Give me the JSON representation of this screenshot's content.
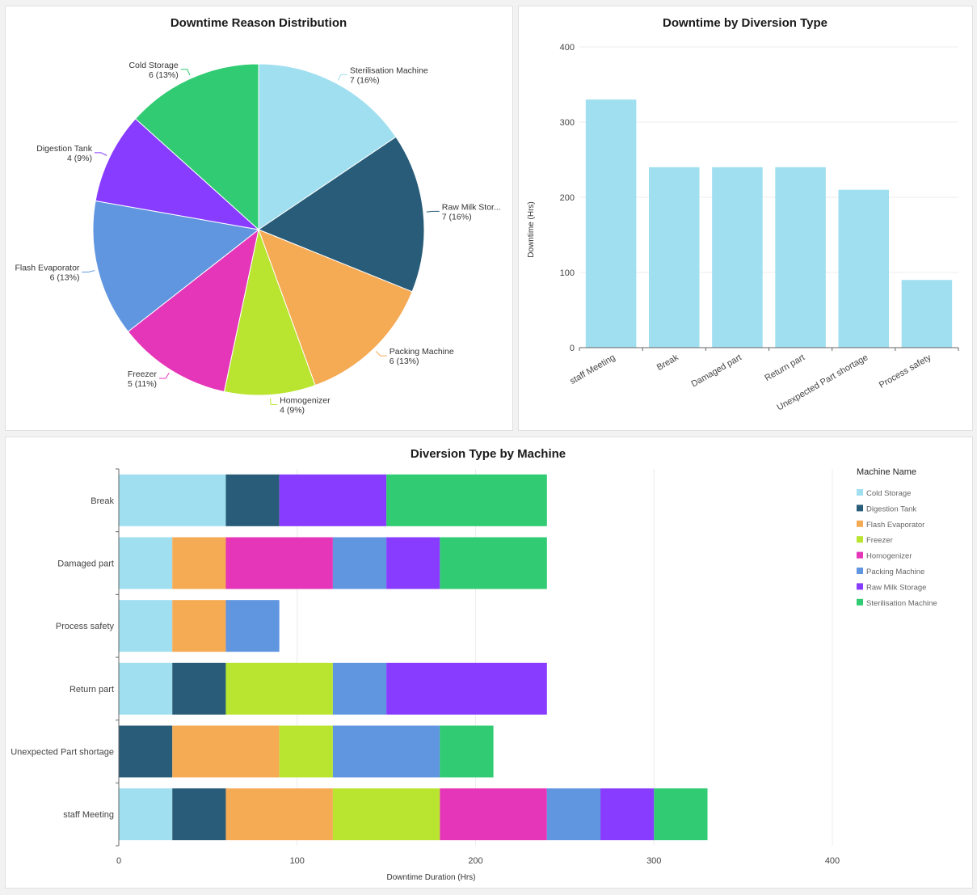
{
  "colors": {
    "Cold Storage": "#a0dff0",
    "Digestion Tank": "#285c78",
    "Flash Evaporator": "#f5aa54",
    "Freezer": "#b9e530",
    "Homogenizer": "#e535b8",
    "Packing Machine": "#6096e0",
    "Raw Milk Storage": "#873cff",
    "Sterilisation Machine": "#30cb72"
  },
  "chart_data": [
    {
      "type": "pie",
      "title": "Downtime Reason Distribution",
      "slices": [
        {
          "label": "Sterilisation Machine",
          "display": "Sterilisation Machine",
          "value": 7,
          "pct": "7 (16%)",
          "color": "#a0dff0"
        },
        {
          "label": "Raw Milk Storage",
          "display": "Raw Milk Stor...",
          "value": 7,
          "pct": "7 (16%)",
          "color": "#285c78"
        },
        {
          "label": "Packing Machine",
          "display": "Packing Machine",
          "value": 6,
          "pct": "6 (13%)",
          "color": "#f5aa54"
        },
        {
          "label": "Homogenizer",
          "display": "Homogenizer",
          "value": 4,
          "pct": "4 (9%)",
          "color": "#b9e530"
        },
        {
          "label": "Freezer",
          "display": "Freezer",
          "value": 5,
          "pct": "5 (11%)",
          "color": "#e535b8"
        },
        {
          "label": "Flash Evaporator",
          "display": "Flash Evaporator",
          "value": 6,
          "pct": "6 (13%)",
          "color": "#6096e0"
        },
        {
          "label": "Digestion Tank",
          "display": "Digestion Tank",
          "value": 4,
          "pct": "4 (9%)",
          "color": "#873cff"
        },
        {
          "label": "Cold Storage",
          "display": "Cold Storage",
          "value": 6,
          "pct": "6 (13%)",
          "color": "#30cb72"
        }
      ]
    },
    {
      "type": "bar",
      "title": "Downtime by Diversion Type",
      "categories": [
        "staff Meeting",
        "Break",
        "Damaged part",
        "Return part",
        "Unexpected Part shortage",
        "Process safety"
      ],
      "values": [
        330,
        240,
        240,
        240,
        210,
        90
      ],
      "xlabel": "",
      "ylabel": "Downtime (Hrs)",
      "ylim": [
        0,
        400
      ],
      "yticks": [
        0,
        100,
        200,
        300,
        400
      ],
      "grid": true,
      "color": "#a0dff0"
    },
    {
      "type": "bar",
      "orientation": "horizontal",
      "stacked": true,
      "title": "Diversion Type by Machine",
      "categories": [
        "Break",
        "Damaged part",
        "Process safety",
        "Return part",
        "Unexpected Part shortage",
        "staff Meeting"
      ],
      "series": [
        {
          "name": "Cold Storage",
          "values": [
            60,
            30,
            30,
            30,
            0,
            30
          ]
        },
        {
          "name": "Digestion Tank",
          "values": [
            30,
            0,
            0,
            30,
            30,
            30
          ]
        },
        {
          "name": "Flash Evaporator",
          "values": [
            0,
            30,
            30,
            0,
            60,
            60
          ]
        },
        {
          "name": "Freezer",
          "values": [
            0,
            0,
            0,
            60,
            30,
            60
          ]
        },
        {
          "name": "Homogenizer",
          "values": [
            0,
            60,
            0,
            0,
            0,
            60
          ]
        },
        {
          "name": "Packing Machine",
          "values": [
            0,
            30,
            30,
            30,
            60,
            30
          ]
        },
        {
          "name": "Raw Milk Storage",
          "values": [
            60,
            30,
            0,
            90,
            0,
            30
          ]
        },
        {
          "name": "Sterilisation Machine",
          "values": [
            90,
            60,
            0,
            0,
            30,
            30
          ]
        }
      ],
      "xlabel": "Downtime Duration (Hrs)",
      "ylabel": "",
      "xlim": [
        0,
        400
      ],
      "xticks": [
        0,
        100,
        200,
        300,
        400
      ],
      "grid": true,
      "legend_title": "Machine Name",
      "legend_position": "right"
    }
  ]
}
